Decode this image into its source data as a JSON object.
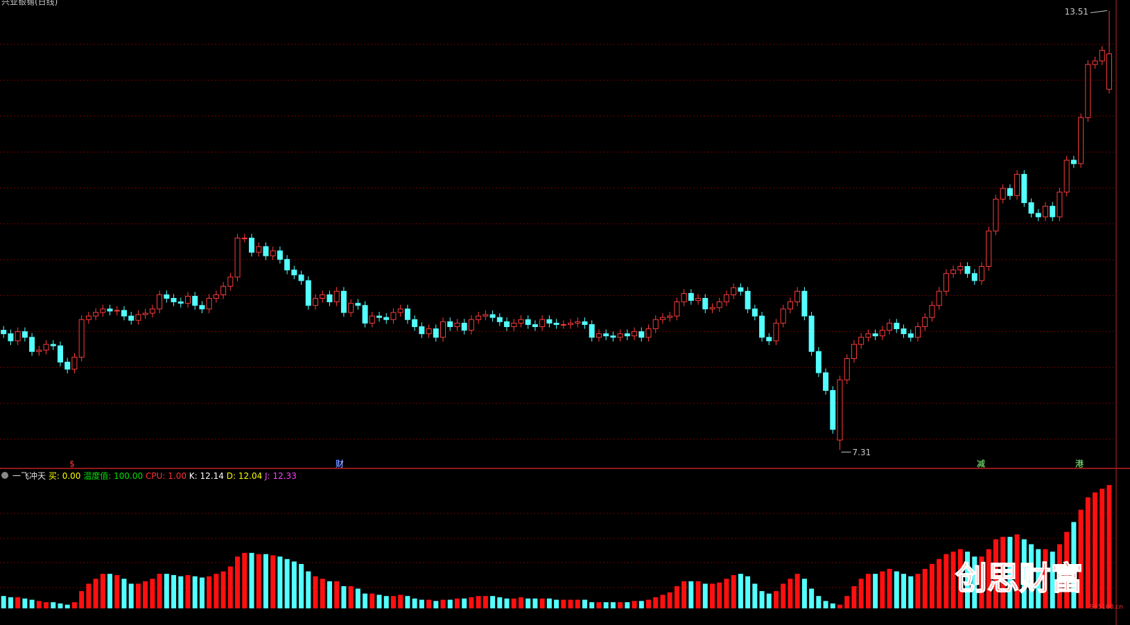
{
  "chart_data": {
    "type": "candlestick",
    "title": "兴业银锡(日线)",
    "up_color": "#ff3c3c",
    "down_color": "#54ffff",
    "ylim": [
      7.05,
      13.66
    ],
    "open": [
      9.0,
      8.95,
      8.85,
      8.98,
      8.9,
      8.7,
      8.72,
      8.8,
      8.78,
      8.55,
      8.45,
      8.62,
      9.15,
      9.2,
      9.25,
      9.3,
      9.27,
      9.28,
      9.2,
      9.14,
      9.22,
      9.24,
      9.3,
      9.5,
      9.45,
      9.4,
      9.38,
      9.48,
      9.35,
      9.3,
      9.45,
      9.5,
      9.62,
      9.75,
      10.3,
      10.3,
      10.1,
      10.18,
      10.05,
      10.12,
      10.0,
      9.85,
      9.78,
      9.7,
      9.35,
      9.45,
      9.5,
      9.4,
      9.55,
      9.25,
      9.38,
      9.35,
      9.1,
      9.2,
      9.18,
      9.15,
      9.25,
      9.3,
      9.15,
      9.05,
      8.95,
      9.02,
      8.9,
      9.12,
      9.05,
      9.1,
      9.0,
      9.15,
      9.2,
      9.22,
      9.18,
      9.12,
      9.05,
      9.1,
      9.15,
      9.08,
      9.05,
      9.15,
      9.1,
      9.08,
      9.08,
      9.1,
      9.12,
      9.08,
      8.9,
      8.95,
      8.92,
      8.9,
      8.95,
      8.92,
      8.98,
      8.9,
      9.02,
      9.15,
      9.18,
      9.2,
      9.4,
      9.52,
      9.42,
      9.45,
      9.3,
      9.32,
      9.4,
      9.5,
      9.6,
      9.55,
      9.3,
      9.2,
      8.9,
      8.85,
      9.1,
      9.3,
      9.4,
      9.55,
      9.2,
      8.7,
      8.4,
      8.15,
      7.45,
      8.3,
      8.6,
      8.8,
      8.9,
      8.95,
      8.92,
      9.0,
      9.1,
      9.02,
      8.95,
      8.9,
      9.05,
      9.18,
      9.35,
      9.55,
      9.8,
      9.85,
      9.9,
      9.8,
      9.7,
      9.9,
      10.4,
      10.85,
      11.0,
      10.9,
      11.2,
      10.8,
      10.65,
      10.6,
      10.75,
      10.6,
      10.95,
      11.4,
      11.35,
      12.0,
      12.75,
      12.8,
      12.4
    ],
    "high": [
      9.06,
      9.01,
      9.04,
      9.04,
      8.96,
      8.78,
      8.86,
      8.86,
      8.84,
      8.61,
      8.68,
      9.21,
      9.26,
      9.31,
      9.36,
      9.36,
      9.34,
      9.34,
      9.26,
      9.28,
      9.3,
      9.36,
      9.56,
      9.56,
      9.51,
      9.46,
      9.54,
      9.54,
      9.41,
      9.51,
      9.56,
      9.68,
      9.81,
      10.36,
      10.36,
      10.36,
      10.24,
      10.24,
      10.18,
      10.18,
      10.06,
      9.91,
      9.84,
      9.76,
      9.51,
      9.56,
      9.56,
      9.61,
      9.61,
      9.44,
      9.44,
      9.41,
      9.26,
      9.26,
      9.24,
      9.31,
      9.36,
      9.36,
      9.21,
      9.11,
      9.08,
      9.08,
      9.18,
      9.18,
      9.16,
      9.16,
      9.21,
      9.26,
      9.28,
      9.28,
      9.24,
      9.18,
      9.16,
      9.21,
      9.21,
      9.14,
      9.21,
      9.21,
      9.16,
      9.14,
      9.16,
      9.18,
      9.18,
      9.14,
      9.01,
      9.01,
      8.98,
      9.01,
      9.01,
      9.04,
      9.04,
      9.08,
      9.21,
      9.24,
      9.26,
      9.46,
      9.58,
      9.58,
      9.51,
      9.51,
      9.38,
      9.46,
      9.56,
      9.66,
      9.66,
      9.61,
      9.36,
      9.26,
      8.96,
      9.16,
      9.36,
      9.46,
      9.61,
      9.61,
      9.26,
      8.76,
      8.46,
      8.21,
      8.36,
      8.66,
      8.86,
      8.96,
      9.01,
      9.01,
      9.06,
      9.16,
      9.16,
      9.08,
      9.01,
      9.11,
      9.24,
      9.41,
      9.61,
      9.86,
      9.91,
      9.96,
      9.96,
      9.86,
      9.96,
      10.46,
      10.91,
      11.06,
      11.06,
      11.26,
      11.26,
      10.86,
      10.71,
      10.81,
      10.81,
      11.01,
      11.46,
      11.46,
      12.06,
      12.81,
      12.86,
      13.01,
      13.51
    ],
    "low": [
      8.89,
      8.79,
      8.79,
      8.84,
      8.64,
      8.64,
      8.66,
      8.72,
      8.49,
      8.39,
      8.39,
      8.56,
      9.09,
      9.14,
      9.19,
      9.21,
      9.21,
      9.14,
      9.08,
      9.08,
      9.16,
      9.18,
      9.24,
      9.39,
      9.34,
      9.32,
      9.32,
      9.29,
      9.24,
      9.24,
      9.39,
      9.44,
      9.56,
      9.69,
      10.24,
      10.04,
      10.04,
      9.99,
      9.99,
      9.94,
      9.79,
      9.72,
      9.64,
      9.29,
      9.29,
      9.39,
      9.34,
      9.34,
      9.19,
      9.19,
      9.29,
      9.04,
      9.04,
      9.12,
      9.09,
      9.09,
      9.19,
      9.09,
      8.99,
      8.89,
      8.89,
      8.84,
      8.84,
      8.99,
      8.99,
      8.94,
      8.94,
      9.09,
      9.14,
      9.12,
      9.06,
      8.99,
      8.99,
      9.04,
      9.02,
      8.99,
      8.99,
      9.04,
      9.02,
      9.02,
      9.02,
      9.04,
      9.02,
      8.84,
      8.84,
      8.86,
      8.84,
      8.84,
      8.86,
      8.86,
      8.84,
      8.84,
      8.96,
      9.09,
      9.12,
      9.14,
      9.34,
      9.36,
      9.36,
      9.24,
      9.24,
      9.26,
      9.34,
      9.44,
      9.49,
      9.24,
      9.14,
      8.84,
      8.79,
      8.79,
      9.04,
      9.24,
      9.34,
      9.14,
      8.64,
      8.34,
      8.09,
      7.54,
      7.31,
      8.24,
      8.54,
      8.74,
      8.84,
      8.86,
      8.86,
      8.94,
      8.96,
      8.89,
      8.84,
      8.84,
      8.99,
      9.12,
      9.29,
      9.49,
      9.74,
      9.79,
      9.74,
      9.64,
      9.64,
      9.84,
      10.34,
      10.79,
      10.84,
      10.84,
      10.74,
      10.59,
      10.54,
      10.54,
      10.54,
      10.54,
      10.89,
      11.29,
      11.29,
      11.94,
      12.69,
      12.74,
      12.34
    ],
    "close": [
      8.95,
      8.85,
      8.98,
      8.9,
      8.7,
      8.72,
      8.8,
      8.78,
      8.55,
      8.45,
      8.62,
      9.15,
      9.2,
      9.25,
      9.3,
      9.27,
      9.28,
      9.2,
      9.14,
      9.22,
      9.24,
      9.3,
      9.5,
      9.45,
      9.4,
      9.38,
      9.48,
      9.35,
      9.3,
      9.45,
      9.5,
      9.62,
      9.75,
      10.3,
      10.3,
      10.1,
      10.18,
      10.05,
      10.12,
      10.0,
      9.85,
      9.78,
      9.7,
      9.35,
      9.45,
      9.5,
      9.4,
      9.55,
      9.25,
      9.38,
      9.35,
      9.1,
      9.2,
      9.18,
      9.15,
      9.25,
      9.3,
      9.15,
      9.05,
      8.95,
      9.02,
      8.9,
      9.12,
      9.05,
      9.1,
      9.0,
      9.15,
      9.2,
      9.22,
      9.18,
      9.12,
      9.05,
      9.1,
      9.15,
      9.08,
      9.05,
      9.15,
      9.1,
      9.08,
      9.08,
      9.1,
      9.12,
      9.08,
      8.9,
      8.95,
      8.92,
      8.9,
      8.95,
      8.92,
      8.98,
      8.9,
      9.02,
      9.15,
      9.18,
      9.2,
      9.4,
      9.52,
      9.42,
      9.45,
      9.3,
      9.32,
      9.4,
      9.5,
      9.6,
      9.55,
      9.3,
      9.2,
      8.9,
      8.85,
      9.1,
      9.3,
      9.4,
      9.55,
      9.2,
      8.7,
      8.4,
      8.15,
      7.6,
      8.3,
      8.6,
      8.8,
      8.9,
      8.95,
      8.92,
      9.0,
      9.1,
      9.02,
      8.95,
      8.9,
      9.05,
      9.18,
      9.35,
      9.55,
      9.8,
      9.85,
      9.9,
      9.8,
      9.7,
      9.9,
      10.4,
      10.85,
      11.0,
      10.9,
      11.2,
      10.8,
      10.65,
      10.6,
      10.75,
      10.6,
      10.95,
      11.4,
      11.35,
      12.0,
      12.75,
      12.8,
      12.95,
      12.9
    ],
    "events": [
      "$",
      "财",
      "减",
      "港"
    ],
    "indicator": {
      "name": "一飞冲天",
      "ylim": [
        0,
        100
      ],
      "items": [
        {
          "label": "买:",
          "value": "0.00",
          "color": "#ffff00"
        },
        {
          "label": "温度值:",
          "value": "100.00",
          "color": "#00e000"
        },
        {
          "label": "CPU:",
          "value": "1.00",
          "color": "#ff3232"
        },
        {
          "label": "K:",
          "value": "12.14",
          "color": "#ffffff"
        },
        {
          "label": "D:",
          "value": "12.04",
          "color": "#ffff00"
        },
        {
          "label": "J:",
          "value": "12.33",
          "color": "#ff40ff"
        }
      ],
      "values": [
        10,
        9,
        9,
        8,
        7,
        6,
        5,
        5,
        4,
        3,
        5,
        14,
        20,
        24,
        28,
        28,
        27,
        24,
        20,
        20,
        22,
        24,
        28,
        28,
        27,
        26,
        27,
        26,
        25,
        26,
        28,
        30,
        34,
        42,
        45,
        45,
        44,
        44,
        43,
        42,
        40,
        38,
        36,
        30,
        26,
        24,
        22,
        22,
        18,
        18,
        16,
        12,
        12,
        11,
        10,
        10,
        11,
        10,
        8,
        7,
        7,
        6,
        7,
        7,
        8,
        8,
        9,
        10,
        10,
        10,
        9,
        8,
        8,
        9,
        8,
        8,
        8,
        8,
        7,
        7,
        7,
        7,
        7,
        5,
        5,
        5,
        5,
        5,
        5,
        6,
        6,
        7,
        9,
        11,
        13,
        18,
        22,
        22,
        22,
        20,
        20,
        21,
        24,
        27,
        28,
        26,
        20,
        14,
        12,
        14,
        20,
        24,
        28,
        24,
        16,
        10,
        6,
        4,
        3,
        10,
        18,
        24,
        28,
        28,
        30,
        32,
        30,
        28,
        26,
        28,
        32,
        36,
        40,
        44,
        46,
        48,
        46,
        42,
        42,
        48,
        56,
        58,
        58,
        60,
        56,
        52,
        48,
        48,
        46,
        52,
        62,
        70,
        80,
        90,
        94,
        97,
        100
      ]
    },
    "watermark": "创思财富",
    "watermark_site": "995168.cn"
  }
}
